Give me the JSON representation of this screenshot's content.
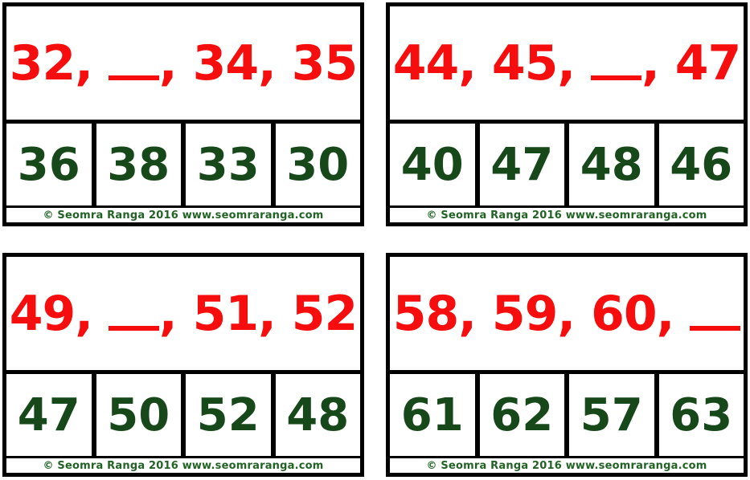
{
  "separator": ", ",
  "blank_token": "__",
  "footer_text": "© Seomra Ranga 2016 www.seomraranga.com",
  "colors": {
    "card_border": "#000000",
    "card_background": "#ffffff",
    "sequence_red": "#f60d0d",
    "answer_green": "#17481a",
    "footer_green": "#226325"
  },
  "cards": [
    {
      "sequence_tokens": [
        "32",
        "__",
        "34",
        "35"
      ],
      "options": [
        "36",
        "38",
        "33",
        "30"
      ]
    },
    {
      "sequence_tokens": [
        "44",
        "45",
        "__",
        "47"
      ],
      "options": [
        "40",
        "47",
        "48",
        "46"
      ]
    },
    {
      "sequence_tokens": [
        "49",
        "__",
        "51",
        "52"
      ],
      "options": [
        "47",
        "50",
        "52",
        "48"
      ]
    },
    {
      "sequence_tokens": [
        "58",
        "59",
        "60",
        "__"
      ],
      "options": [
        "61",
        "62",
        "57",
        "63"
      ]
    }
  ]
}
